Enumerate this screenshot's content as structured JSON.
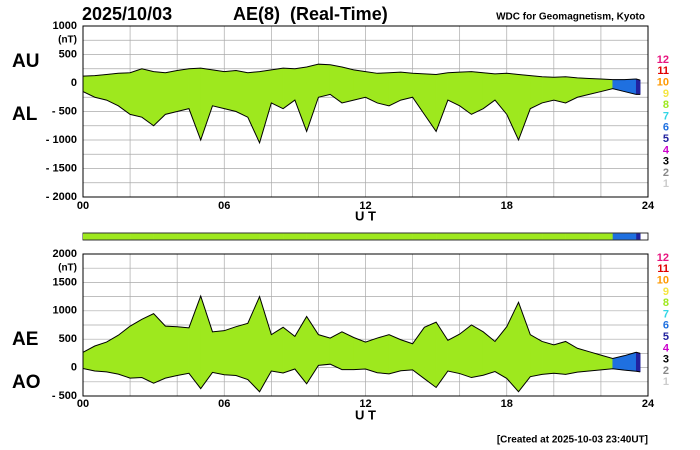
{
  "header": {
    "date": "2025/10/03",
    "title": "AE(8)  (Real-Time)",
    "source": "WDC for Geomagnetism, Kyoto"
  },
  "footer": "[Created at 2025-10-03 23:40UT]",
  "station_legend": [
    {
      "stations": 12,
      "color": "#e8157f"
    },
    {
      "stations": 11,
      "color": "#e00000"
    },
    {
      "stations": 10,
      "color": "#ff9900"
    },
    {
      "stations": 9,
      "color": "#f5e642"
    },
    {
      "stations": 8,
      "color": "#9ee81e"
    },
    {
      "stations": 7,
      "color": "#33d6e6"
    },
    {
      "stations": 6,
      "color": "#1f70e0"
    },
    {
      "stations": 5,
      "color": "#22229e"
    },
    {
      "stations": 4,
      "color": "#cc00cc"
    },
    {
      "stations": 3,
      "color": "#000000"
    },
    {
      "stations": 2,
      "color": "#888888"
    },
    {
      "stations": 1,
      "color": "#cccccc"
    }
  ],
  "chart_data": [
    {
      "type": "band",
      "unit_label": "(nT)",
      "x_label": "U T",
      "x": [
        0,
        0.5,
        1,
        1.5,
        2,
        2.5,
        3,
        3.5,
        4,
        4.5,
        5,
        5.5,
        6,
        6.5,
        7,
        7.5,
        8,
        8.5,
        9,
        9.5,
        10,
        10.5,
        11,
        11.5,
        12,
        12.5,
        13,
        13.5,
        14,
        14.5,
        15,
        15.5,
        16,
        16.5,
        17,
        17.5,
        18,
        18.5,
        19,
        19.5,
        20,
        20.5,
        21,
        21.5,
        22,
        22.5,
        23,
        23.5,
        23.67
      ],
      "xlim": [
        0,
        24
      ],
      "xticks": [
        {
          "value": 0,
          "label": "00"
        },
        {
          "value": 6,
          "label": "06"
        },
        12,
        18,
        24
      ],
      "x_minor_ticks": [
        2,
        4,
        8,
        10,
        14,
        16,
        20,
        22
      ],
      "ylim": [
        -2000,
        1000
      ],
      "yticks": [
        1000,
        500,
        0,
        {
          "value": -500,
          "label": "- 500"
        },
        {
          "value": -1000,
          "label": "- 1000"
        },
        {
          "value": -1500,
          "label": "- 1500"
        },
        {
          "value": -2000,
          "label": "- 2000"
        }
      ],
      "y_minor_ticks": [
        750,
        250,
        -250,
        -750,
        -1250,
        -1750
      ],
      "grid": true,
      "series": [
        {
          "name": "AU",
          "values": [
            120,
            130,
            150,
            170,
            180,
            250,
            200,
            180,
            220,
            250,
            260,
            230,
            200,
            220,
            180,
            200,
            230,
            260,
            250,
            280,
            330,
            320,
            280,
            230,
            200,
            170,
            180,
            190,
            170,
            160,
            150,
            180,
            190,
            200,
            180,
            160,
            170,
            150,
            130,
            110,
            100,
            110,
            90,
            80,
            70,
            60,
            60,
            70,
            50
          ]
        },
        {
          "name": "AL",
          "values": [
            -150,
            -250,
            -300,
            -400,
            -550,
            -600,
            -750,
            -550,
            -500,
            -450,
            -1000,
            -400,
            -450,
            -500,
            -600,
            -1050,
            -350,
            -450,
            -300,
            -850,
            -250,
            -200,
            -350,
            -300,
            -250,
            -350,
            -400,
            -300,
            -250,
            -550,
            -850,
            -300,
            -400,
            -550,
            -450,
            -300,
            -550,
            -1000,
            -450,
            -350,
            -300,
            -350,
            -250,
            -200,
            -150,
            -100,
            -150,
            -200,
            -200
          ]
        }
      ],
      "stations": [
        8,
        8,
        8,
        8,
        8,
        8,
        8,
        8,
        8,
        8,
        8,
        8,
        8,
        8,
        8,
        8,
        8,
        8,
        8,
        8,
        8,
        8,
        8,
        8,
        8,
        8,
        8,
        8,
        8,
        8,
        8,
        8,
        8,
        8,
        8,
        8,
        8,
        8,
        8,
        8,
        8,
        8,
        8,
        8,
        8,
        8,
        6,
        6,
        5
      ]
    },
    {
      "type": "band",
      "unit_label": "(nT)",
      "x_label": "U T",
      "x": [
        0,
        0.5,
        1,
        1.5,
        2,
        2.5,
        3,
        3.5,
        4,
        4.5,
        5,
        5.5,
        6,
        6.5,
        7,
        7.5,
        8,
        8.5,
        9,
        9.5,
        10,
        10.5,
        11,
        11.5,
        12,
        12.5,
        13,
        13.5,
        14,
        14.5,
        15,
        15.5,
        16,
        16.5,
        17,
        17.5,
        18,
        18.5,
        19,
        19.5,
        20,
        20.5,
        21,
        21.5,
        22,
        22.5,
        23,
        23.5,
        23.67
      ],
      "xlim": [
        0,
        24
      ],
      "xticks": [
        {
          "value": 0,
          "label": "00"
        },
        {
          "value": 6,
          "label": "06"
        },
        12,
        18,
        24
      ],
      "x_minor_ticks": [
        2,
        4,
        8,
        10,
        14,
        16,
        20,
        22
      ],
      "ylim": [
        -500,
        2000
      ],
      "yticks": [
        2000,
        1500,
        1000,
        500,
        0,
        {
          "value": -500,
          "label": "- 500"
        }
      ],
      "y_minor_ticks": [
        1750,
        1250,
        750,
        250,
        -250
      ],
      "grid": true,
      "series": [
        {
          "name": "AE",
          "values": [
            270,
            380,
            450,
            570,
            730,
            850,
            950,
            730,
            720,
            700,
            1260,
            630,
            650,
            720,
            780,
            1250,
            580,
            710,
            550,
            900,
            580,
            520,
            630,
            530,
            450,
            520,
            580,
            490,
            420,
            710,
            800,
            480,
            590,
            750,
            630,
            460,
            720,
            1150,
            580,
            460,
            400,
            460,
            340,
            280,
            220,
            160,
            210,
            270,
            250
          ]
        },
        {
          "name": "AO",
          "values": [
            -15,
            -60,
            -75,
            -115,
            -185,
            -175,
            -275,
            -185,
            -140,
            -100,
            -370,
            -85,
            -125,
            -140,
            -210,
            -425,
            -60,
            -95,
            -25,
            -285,
            40,
            60,
            -35,
            -35,
            -25,
            -90,
            -110,
            -55,
            -40,
            -195,
            -350,
            -60,
            -105,
            -175,
            -135,
            -70,
            -190,
            -425,
            -160,
            -120,
            -100,
            -120,
            -80,
            -60,
            -40,
            -20,
            -45,
            -65,
            -75
          ]
        }
      ],
      "stations": [
        8,
        8,
        8,
        8,
        8,
        8,
        8,
        8,
        8,
        8,
        8,
        8,
        8,
        8,
        8,
        8,
        8,
        8,
        8,
        8,
        8,
        8,
        8,
        8,
        8,
        8,
        8,
        8,
        8,
        8,
        8,
        8,
        8,
        8,
        8,
        8,
        8,
        8,
        8,
        8,
        8,
        8,
        8,
        8,
        8,
        8,
        6,
        6,
        5
      ]
    }
  ]
}
